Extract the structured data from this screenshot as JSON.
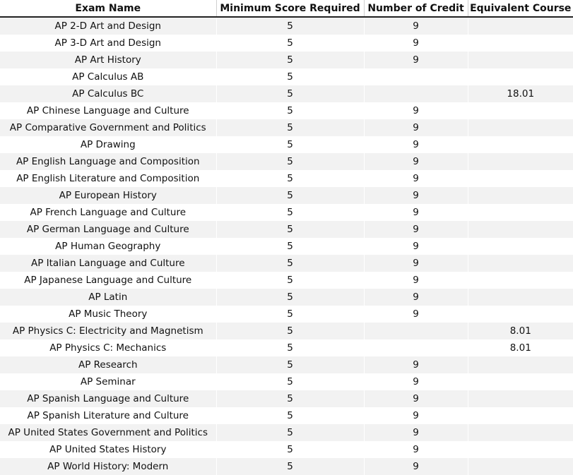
{
  "table": {
    "columns": [
      "Exam Name",
      "Minimum Score Required",
      "Number of Credit",
      "Equivalent Course"
    ],
    "rows": [
      [
        "AP 2-D Art and Design",
        5,
        9,
        null
      ],
      [
        "AP 3-D Art and Design",
        5,
        9,
        null
      ],
      [
        "AP Art History",
        5,
        9,
        null
      ],
      [
        "AP Calculus AB",
        5,
        null,
        null
      ],
      [
        "AP Calculus BC",
        5,
        null,
        "18.01"
      ],
      [
        "AP Chinese Language and Culture",
        5,
        9,
        null
      ],
      [
        "AP Comparative Government and Politics",
        5,
        9,
        null
      ],
      [
        "AP Drawing",
        5,
        9,
        null
      ],
      [
        "AP English Language and Composition",
        5,
        9,
        null
      ],
      [
        "AP English Literature and Composition",
        5,
        9,
        null
      ],
      [
        "AP European History",
        5,
        9,
        null
      ],
      [
        "AP French Language and Culture",
        5,
        9,
        null
      ],
      [
        "AP German Language and Culture",
        5,
        9,
        null
      ],
      [
        "AP Human Geography",
        5,
        9,
        null
      ],
      [
        "AP Italian Language and Culture",
        5,
        9,
        null
      ],
      [
        "AP Japanese Language and Culture",
        5,
        9,
        null
      ],
      [
        "AP Latin",
        5,
        9,
        null
      ],
      [
        "AP Music Theory",
        5,
        9,
        null
      ],
      [
        "AP Physics C: Electricity and Magnetism",
        5,
        null,
        "8.01"
      ],
      [
        "AP Physics C: Mechanics",
        5,
        null,
        "8.01"
      ],
      [
        "AP Research",
        5,
        9,
        null
      ],
      [
        "AP Seminar",
        5,
        9,
        null
      ],
      [
        "AP Spanish Language and Culture",
        5,
        9,
        null
      ],
      [
        "AP Spanish Literature and Culture",
        5,
        9,
        null
      ],
      [
        "AP United States Government and Politics",
        5,
        9,
        null
      ],
      [
        "AP United States History",
        5,
        9,
        null
      ],
      [
        "AP World History: Modern",
        5,
        9,
        null
      ]
    ]
  }
}
